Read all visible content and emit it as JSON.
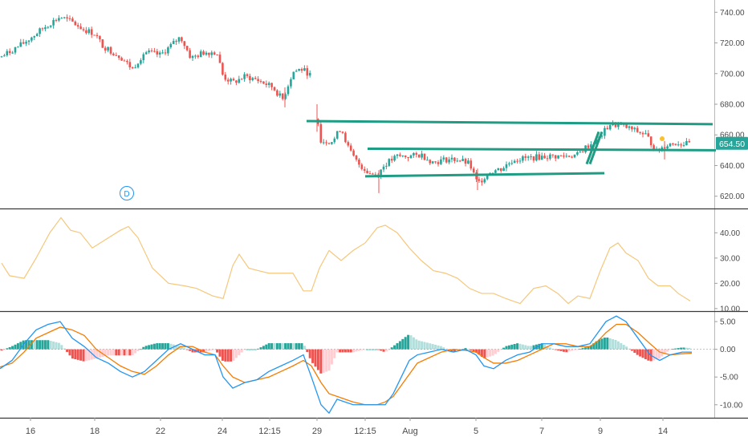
{
  "chart_data": [
    {
      "type": "candlestick",
      "panel": "price",
      "ylim": [
        612,
        748
      ],
      "yticks": [
        "740.00",
        "720.00",
        "700.00",
        "680.00",
        "660.00",
        "640.00",
        "620.00"
      ],
      "ytick_values": [
        740,
        720,
        700,
        680,
        660,
        640,
        620
      ],
      "last_price_label": "654.50",
      "last_price": 654.5,
      "marker_label": "D",
      "colors": {
        "up": "#26a69a",
        "down": "#ef5350",
        "trendline": "#1f9c84",
        "price_badge": "#26a69a"
      },
      "trendlines": [
        {
          "from": [
            382,
            669
          ],
          "to": [
            888,
            667
          ]
        },
        {
          "from": [
            458,
            651
          ],
          "to": [
            892,
            650
          ]
        },
        {
          "from": [
            455,
            633
          ],
          "to": [
            753,
            635
          ]
        },
        {
          "from": [
            731,
            641
          ],
          "to": [
            746,
            662
          ]
        },
        {
          "from": [
            735,
            641
          ],
          "to": [
            750,
            662
          ]
        }
      ],
      "anchors": [
        [
          2,
          711
        ],
        [
          30,
          720
        ],
        [
          60,
          732
        ],
        [
          75,
          737
        ],
        [
          92,
          733
        ],
        [
          103,
          729
        ],
        [
          118,
          726
        ],
        [
          128,
          718
        ],
        [
          150,
          711
        ],
        [
          165,
          703
        ],
        [
          180,
          714
        ],
        [
          200,
          712
        ],
        [
          225,
          724
        ],
        [
          238,
          710
        ],
        [
          255,
          714
        ],
        [
          270,
          714
        ],
        [
          278,
          698
        ],
        [
          290,
          694
        ],
        [
          305,
          698
        ],
        [
          320,
          696
        ],
        [
          340,
          691
        ],
        [
          352,
          683
        ],
        [
          365,
          701
        ],
        [
          375,
          703
        ],
        [
          385,
          700
        ],
        [
          390,
          696
        ],
        [
          395,
          674
        ],
        [
          400,
          656
        ],
        [
          415,
          656
        ],
        [
          425,
          665
        ],
        [
          435,
          650
        ],
        [
          445,
          642
        ],
        [
          460,
          635
        ],
        [
          470,
          634
        ],
        [
          480,
          641
        ],
        [
          495,
          646
        ],
        [
          510,
          646
        ],
        [
          525,
          647
        ],
        [
          540,
          642
        ],
        [
          555,
          644
        ],
        [
          570,
          644
        ],
        [
          585,
          641
        ],
        [
          595,
          628
        ],
        [
          610,
          636
        ],
        [
          625,
          638
        ],
        [
          640,
          644
        ],
        [
          660,
          645
        ],
        [
          680,
          646
        ],
        [
          700,
          646
        ],
        [
          720,
          647
        ],
        [
          730,
          652
        ],
        [
          745,
          657
        ],
        [
          760,
          667
        ],
        [
          775,
          666
        ],
        [
          790,
          663
        ],
        [
          805,
          660
        ],
        [
          818,
          649
        ],
        [
          828,
          653
        ],
        [
          840,
          655
        ],
        [
          855,
          654
        ],
        [
          862,
          654.5
        ]
      ]
    },
    {
      "type": "line",
      "panel": "oscillator",
      "ylim": [
        9,
        49
      ],
      "yticks": [
        "40.00",
        "30.00",
        "20.00",
        "10.00"
      ],
      "ytick_values": [
        40,
        30,
        20,
        10
      ],
      "color": "#f5c77a",
      "points": [
        [
          2,
          28
        ],
        [
          12,
          23
        ],
        [
          30,
          22
        ],
        [
          45,
          30
        ],
        [
          62,
          40
        ],
        [
          76,
          46
        ],
        [
          88,
          41
        ],
        [
          100,
          40
        ],
        [
          115,
          34
        ],
        [
          130,
          37
        ],
        [
          150,
          41
        ],
        [
          160,
          42.5
        ],
        [
          172,
          38
        ],
        [
          190,
          26
        ],
        [
          210,
          20
        ],
        [
          230,
          19
        ],
        [
          245,
          18
        ],
        [
          265,
          15
        ],
        [
          278,
          14
        ],
        [
          290,
          27
        ],
        [
          298,
          31.5
        ],
        [
          310,
          26
        ],
        [
          322,
          25
        ],
        [
          335,
          24
        ],
        [
          350,
          24
        ],
        [
          365,
          24
        ],
        [
          378,
          17
        ],
        [
          388,
          17
        ],
        [
          398,
          26
        ],
        [
          410,
          33
        ],
        [
          425,
          29
        ],
        [
          440,
          33
        ],
        [
          455,
          36
        ],
        [
          470,
          42
        ],
        [
          480,
          43
        ],
        [
          495,
          40
        ],
        [
          510,
          34
        ],
        [
          525,
          29
        ],
        [
          540,
          25
        ],
        [
          555,
          24
        ],
        [
          570,
          22
        ],
        [
          585,
          18
        ],
        [
          600,
          16
        ],
        [
          615,
          16
        ],
        [
          630,
          14
        ],
        [
          648,
          12
        ],
        [
          665,
          18
        ],
        [
          680,
          19
        ],
        [
          695,
          16
        ],
        [
          708,
          12
        ],
        [
          720,
          15
        ],
        [
          735,
          14
        ],
        [
          748,
          25
        ],
        [
          760,
          34
        ],
        [
          770,
          36
        ],
        [
          780,
          32
        ],
        [
          795,
          29
        ],
        [
          808,
          22
        ],
        [
          820,
          19
        ],
        [
          835,
          19
        ],
        [
          845,
          16
        ],
        [
          860,
          13
        ]
      ]
    },
    {
      "type": "macd",
      "panel": "macd",
      "ylim": [
        -12.2,
        6.6
      ],
      "yticks": [
        "5.00",
        "0.00",
        "-5.00",
        "-10.00"
      ],
      "ytick_values": [
        5,
        0,
        -5,
        -10
      ],
      "colors": {
        "macd": "#2196f3",
        "signal": "#f57c00",
        "hist_up_strong": "#26a69a",
        "hist_up_weak": "#b2dfdb",
        "hist_down_strong": "#ef5350",
        "hist_down_weak": "#ffcdd2"
      },
      "macd_line": [
        [
          0,
          -3.5
        ],
        [
          15,
          -2
        ],
        [
          30,
          1
        ],
        [
          45,
          3.5
        ],
        [
          60,
          4.5
        ],
        [
          75,
          5
        ],
        [
          90,
          2
        ],
        [
          105,
          0.5
        ],
        [
          120,
          -1.5
        ],
        [
          135,
          -2.5
        ],
        [
          150,
          -4
        ],
        [
          165,
          -5
        ],
        [
          180,
          -4
        ],
        [
          195,
          -2
        ],
        [
          210,
          0
        ],
        [
          225,
          1
        ],
        [
          240,
          0
        ],
        [
          255,
          -1
        ],
        [
          268,
          -1
        ],
        [
          278,
          -5
        ],
        [
          290,
          -7
        ],
        [
          305,
          -6
        ],
        [
          320,
          -5.5
        ],
        [
          335,
          -4
        ],
        [
          350,
          -3
        ],
        [
          365,
          -2
        ],
        [
          378,
          -1
        ],
        [
          388,
          -5
        ],
        [
          400,
          -10
        ],
        [
          410,
          -11.5
        ],
        [
          420,
          -9
        ],
        [
          430,
          -9.5
        ],
        [
          440,
          -10
        ],
        [
          455,
          -10
        ],
        [
          470,
          -10
        ],
        [
          480,
          -10
        ],
        [
          490,
          -8
        ],
        [
          500,
          -5
        ],
        [
          510,
          -2
        ],
        [
          520,
          -1
        ],
        [
          535,
          -0.5
        ],
        [
          550,
          0
        ],
        [
          565,
          -0.5
        ],
        [
          580,
          0
        ],
        [
          593,
          -1
        ],
        [
          603,
          -3
        ],
        [
          615,
          -3.5
        ],
        [
          630,
          -2
        ],
        [
          645,
          -1
        ],
        [
          660,
          -0.5
        ],
        [
          675,
          1
        ],
        [
          690,
          1
        ],
        [
          705,
          0.5
        ],
        [
          720,
          0.5
        ],
        [
          735,
          1
        ],
        [
          745,
          3
        ],
        [
          755,
          5
        ],
        [
          768,
          6
        ],
        [
          780,
          5
        ],
        [
          795,
          2
        ],
        [
          810,
          -1
        ],
        [
          822,
          -2
        ],
        [
          835,
          -1
        ],
        [
          850,
          -0.5
        ],
        [
          862,
          -0.5
        ]
      ],
      "signal_line": [
        [
          0,
          -3.2
        ],
        [
          15,
          -2.5
        ],
        [
          30,
          -0.5
        ],
        [
          45,
          2
        ],
        [
          60,
          3
        ],
        [
          75,
          4
        ],
        [
          90,
          3.5
        ],
        [
          105,
          2.5
        ],
        [
          120,
          0
        ],
        [
          135,
          -1.5
        ],
        [
          150,
          -3
        ],
        [
          165,
          -4
        ],
        [
          180,
          -4.5
        ],
        [
          195,
          -3
        ],
        [
          210,
          -1
        ],
        [
          225,
          0.5
        ],
        [
          240,
          0.5
        ],
        [
          255,
          -0.5
        ],
        [
          268,
          -1
        ],
        [
          278,
          -3
        ],
        [
          290,
          -5
        ],
        [
          305,
          -6
        ],
        [
          320,
          -5.5
        ],
        [
          335,
          -5
        ],
        [
          350,
          -4
        ],
        [
          365,
          -3
        ],
        [
          378,
          -2
        ],
        [
          388,
          -3
        ],
        [
          400,
          -6
        ],
        [
          410,
          -8
        ],
        [
          420,
          -8.5
        ],
        [
          430,
          -9
        ],
        [
          440,
          -9.5
        ],
        [
          455,
          -10
        ],
        [
          470,
          -10
        ],
        [
          480,
          -9.5
        ],
        [
          490,
          -8.5
        ],
        [
          500,
          -6.5
        ],
        [
          510,
          -4.5
        ],
        [
          520,
          -2.5
        ],
        [
          535,
          -1.5
        ],
        [
          550,
          -0.5
        ],
        [
          565,
          0
        ],
        [
          580,
          -0.2
        ],
        [
          593,
          -0.5
        ],
        [
          603,
          -1.5
        ],
        [
          615,
          -2.5
        ],
        [
          630,
          -2.5
        ],
        [
          645,
          -2
        ],
        [
          660,
          -1
        ],
        [
          675,
          0
        ],
        [
          690,
          1
        ],
        [
          705,
          1
        ],
        [
          720,
          0.5
        ],
        [
          735,
          0.5
        ],
        [
          745,
          1.5
        ],
        [
          755,
          3
        ],
        [
          768,
          4.5
        ],
        [
          780,
          4.5
        ],
        [
          795,
          3
        ],
        [
          810,
          1
        ],
        [
          822,
          -0.5
        ],
        [
          835,
          -1
        ],
        [
          850,
          -0.8
        ],
        [
          862,
          -0.7
        ]
      ]
    }
  ],
  "x_axis": {
    "labels": [
      "16",
      "18",
      "22",
      "24",
      "12:15",
      "29",
      "12:15",
      "Aug",
      "5",
      "7",
      "9",
      "14"
    ],
    "label_x": [
      38,
      118,
      200,
      277,
      336,
      395,
      455,
      511,
      593,
      675,
      748,
      826
    ]
  }
}
